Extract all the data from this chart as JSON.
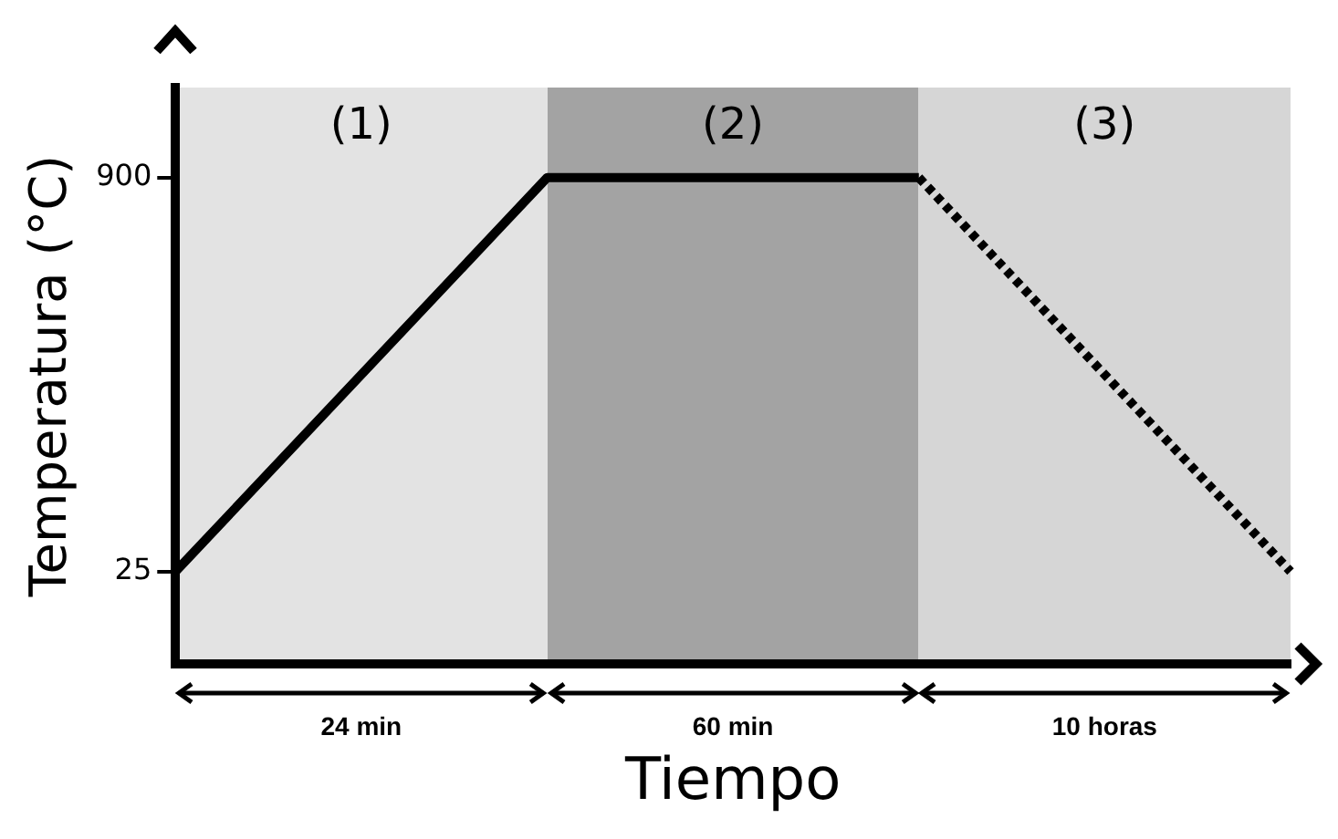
{
  "chart_data": {
    "type": "line",
    "xlabel": "Tiempo",
    "ylabel": "Temperatura (°C)",
    "categories": [
      null,
      null,
      null,
      null
    ],
    "series": [
      {
        "color": "#000000",
        "line_style": "solid",
        "values": [
          25,
          900,
          900,
          null
        ]
      },
      {
        "color": "#000000",
        "line_style": "dotted",
        "values": [
          null,
          null,
          900,
          25
        ]
      }
    ],
    "ylim": [
      -180,
      1100
    ],
    "yticks": [
      25,
      900
    ],
    "tick_labels": "y",
    "grid": false,
    "legend": false,
    "marker": "none",
    "annotations": [
      "(1)",
      "(2)",
      "(3)",
      "24 min",
      "60 min",
      "10 horas"
    ]
  }
}
